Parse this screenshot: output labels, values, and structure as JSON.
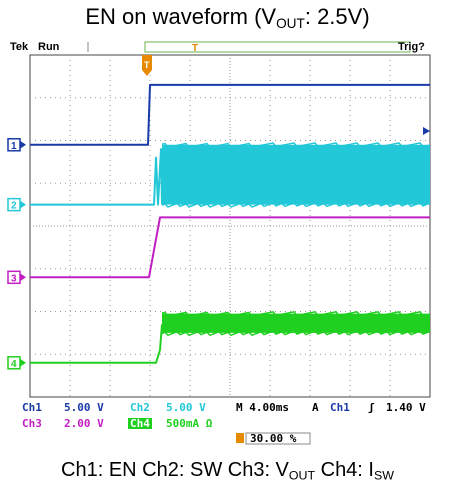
{
  "header": {
    "title_prefix": "EN on waveform (V",
    "title_sub": "OUT",
    "title_suffix": ": 2.5V)"
  },
  "caption": {
    "p1": "Ch1: EN Ch2: SW Ch3: V",
    "p1_sub": "OUT",
    "p2": " Ch4: I",
    "p2_sub": "SW"
  },
  "scope": {
    "brand": "Tek",
    "run_status": "Run",
    "trigger_status": "Trig?",
    "trigger_marker": "T",
    "channel_settings": [
      {
        "ch": "Ch1",
        "scale": "5.00 V",
        "color": "#1a3aa8"
      },
      {
        "ch": "Ch2",
        "scale": "5.00 V",
        "color": "#22c8d8"
      },
      {
        "ch": "Ch3",
        "scale": "2.00 V",
        "color": "#c21fc2"
      },
      {
        "ch": "Ch4",
        "scale": "500mA Ω",
        "color": "#20d020"
      }
    ],
    "timebase": "M 4.00ms",
    "trigger_mode": "A",
    "trigger_source": "Ch1",
    "trigger_slope": "ʃ",
    "trigger_level": "1.40 V",
    "trigger_position": "30.00 %"
  },
  "chart_data": {
    "type": "line",
    "x_unit": "ms",
    "x_range": [
      -12,
      28
    ],
    "x_divisions": 10,
    "y_range_divisions": [
      -4,
      4
    ],
    "grid": true,
    "trigger_time_ms": 0,
    "series": [
      {
        "name": "Ch1",
        "color": "#1a3aa8",
        "ground_div": 1.9,
        "points": [
          [
            -12,
            1.9
          ],
          [
            -0.2,
            1.9
          ],
          [
            0,
            3.3
          ],
          [
            28,
            3.3
          ]
        ],
        "style": "step"
      },
      {
        "name": "Ch2",
        "color": "#22c8d8",
        "ground_div": 0.5,
        "band": {
          "from_ms": 1.2,
          "to_ms": 28,
          "low_div": 0.5,
          "high_div": 1.9
        },
        "points": [
          [
            -12,
            0.5
          ],
          [
            0.4,
            0.5
          ],
          [
            0.6,
            1.6
          ],
          [
            0.8,
            0.5
          ],
          [
            1.1,
            1.8
          ],
          [
            1.2,
            0.5
          ]
        ]
      },
      {
        "name": "Ch3",
        "color": "#c21fc2",
        "ground_div": -1.2,
        "points": [
          [
            -12,
            -1.2
          ],
          [
            -0.1,
            -1.2
          ],
          [
            1.0,
            0.2
          ],
          [
            28,
            0.2
          ]
        ]
      },
      {
        "name": "Ch4",
        "color": "#20d020",
        "ground_div": -3.2,
        "band": {
          "from_ms": 1.2,
          "to_ms": 28,
          "low_div": -2.5,
          "high_div": -2.05
        },
        "points": [
          [
            -12,
            -3.2
          ],
          [
            0.6,
            -3.2
          ],
          [
            1.0,
            -2.9
          ],
          [
            1.2,
            -2.3
          ]
        ]
      }
    ]
  }
}
